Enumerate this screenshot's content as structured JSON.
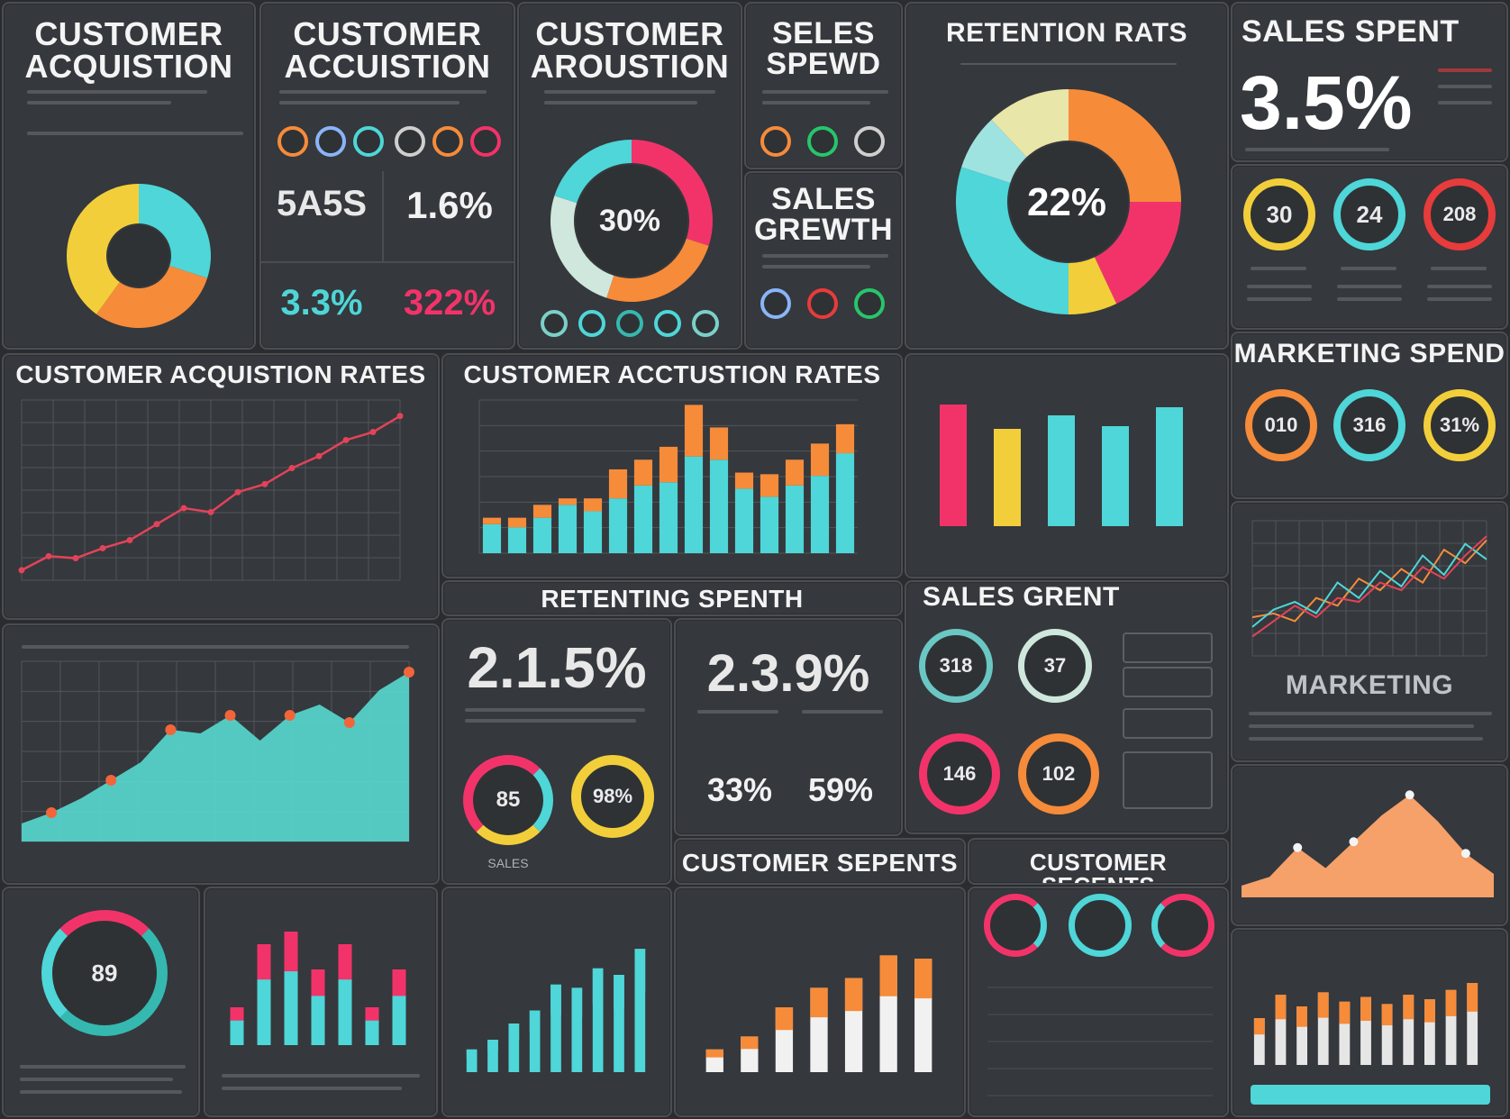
{
  "colors": {
    "cyan": "#4ed6d8",
    "yellow": "#f2cf3a",
    "orange": "#f68b3a",
    "pink": "#f2336a",
    "red": "#e83b3b",
    "green": "#27c56b",
    "teal": "#35b8b0"
  },
  "panels": {
    "acq1": {
      "title": "CUSTOMER\nACQUISTION"
    },
    "acq2": {
      "title": "CUSTOMER\nACCUISTION",
      "stat1": "5A5S",
      "stat2": "1.6%",
      "stat3": "3.3%",
      "stat4": "322%"
    },
    "acq3": {
      "title": "CUSTOMER\nAROUSTION",
      "donut_label": "30%"
    },
    "sales_spend": {
      "title": "SELES\nSPEWD"
    },
    "sales_growth": {
      "title": "SALES\nGREWTH"
    },
    "retention": {
      "title": "RETENTION RATS",
      "donut_label": "22%"
    },
    "sales_spent": {
      "title": "SALES  SPENT",
      "value": "3.5%"
    },
    "rings_top": {
      "labels": [
        "30",
        "24",
        "208"
      ]
    },
    "marketing_spend": {
      "title": "MARKETING SPEND",
      "labels": [
        "010",
        "316",
        "31%"
      ]
    },
    "acq_rates_line": {
      "title": "CUSTOMER ACQUISTION RATES"
    },
    "acq_rates_bars": {
      "title": "CUSTOMER ACCTUSTION RATES"
    },
    "retenting": {
      "title": "RETENTING SPENTH"
    },
    "sales_grent": {
      "title": "SALES  GRENT",
      "rings": [
        "318",
        "37",
        "146",
        "102"
      ]
    },
    "marketing_line": {
      "title": "MARKETING"
    },
    "stat_a": {
      "value": "2.1.5%",
      "ring1": "85",
      "ring2": "98%",
      "ring_caption": "SALES"
    },
    "stat_b": {
      "value": "2.3.9%",
      "sub1": "33%",
      "sub2": "59%"
    },
    "customer_sepents_a": {
      "title": "CUSTOMER SEPENTS"
    },
    "customer_sepents_b": {
      "title": "CUSTOMER SECENTS"
    },
    "gauge": {
      "label": "89"
    }
  },
  "chart_data": [
    {
      "type": "pie",
      "name_ref": "acq1",
      "values": [
        30,
        30,
        40
      ],
      "colors": [
        "#4ed6d8",
        "#f68b3a",
        "#f2cf3a"
      ]
    },
    {
      "type": "pie",
      "name_ref": "acq3",
      "values": [
        30,
        25,
        25,
        20
      ],
      "colors": [
        "#f2336a",
        "#f68b3a",
        "#cfe7dc",
        "#4ed6d8"
      ]
    },
    {
      "type": "pie",
      "name_ref": "retention",
      "values": [
        25,
        18,
        7,
        30,
        8,
        12
      ],
      "colors": [
        "#f68b3a",
        "#f2336a",
        "#f2cf3a",
        "#4ed6d8",
        "#9fe3e0",
        "#e8e6a8"
      ]
    },
    {
      "type": "line",
      "name_ref": "acq_rates_line",
      "values": [
        5,
        12,
        11,
        16,
        20,
        28,
        36,
        34,
        44,
        48,
        56,
        62,
        70,
        74,
        82
      ]
    },
    {
      "type": "bar",
      "name_ref": "acq_rates_bars",
      "series": [
        {
          "values": [
            18,
            16,
            22,
            30,
            26,
            34,
            42,
            44,
            60,
            58,
            40,
            35,
            42,
            48,
            62
          ]
        },
        {
          "values": [
            4,
            6,
            8,
            4,
            8,
            18,
            16,
            22,
            32,
            20,
            10,
            14,
            16,
            20,
            18
          ]
        }
      ]
    },
    {
      "type": "bar",
      "name_ref": "retention_bars",
      "values": [
        90,
        72,
        82,
        74,
        88
      ],
      "colors": [
        "#f2336a",
        "#f2cf3a",
        "#4ed6d8",
        "#4ed6d8",
        "#4ed6d8"
      ]
    },
    {
      "type": "line",
      "name_ref": "marketing_line",
      "series": [
        {
          "values": [
            20,
            22,
            18,
            30,
            26,
            40,
            34,
            45,
            38,
            55,
            48,
            60
          ]
        },
        {
          "values": [
            15,
            24,
            28,
            22,
            38,
            30,
            44,
            36,
            52,
            42,
            58,
            50
          ]
        },
        {
          "values": [
            10,
            18,
            26,
            20,
            30,
            28,
            38,
            34,
            46,
            40,
            52,
            62
          ]
        }
      ]
    },
    {
      "type": "area",
      "name_ref": "area_big",
      "values": [
        10,
        16,
        24,
        34,
        44,
        62,
        60,
        70,
        56,
        70,
        76,
        66,
        84,
        94
      ]
    },
    {
      "type": "area",
      "name_ref": "area_orange",
      "values": [
        8,
        14,
        34,
        20,
        38,
        56,
        70,
        52,
        30,
        16
      ]
    },
    {
      "type": "bar",
      "name_ref": "bars_small1",
      "values": [
        30,
        80,
        90,
        60,
        80,
        30,
        60
      ]
    },
    {
      "type": "bar",
      "name_ref": "bars_small2",
      "values": [
        14,
        20,
        30,
        38,
        54,
        52,
        64,
        60,
        76
      ]
    },
    {
      "type": "bar",
      "name_ref": "bars_small3",
      "values": [
        14,
        22,
        40,
        52,
        58,
        72,
        70
      ]
    },
    {
      "type": "bar",
      "name_ref": "bars_small4",
      "values": [
        40,
        60,
        50,
        62,
        54,
        58,
        52,
        60,
        56,
        64,
        70
      ]
    }
  ]
}
